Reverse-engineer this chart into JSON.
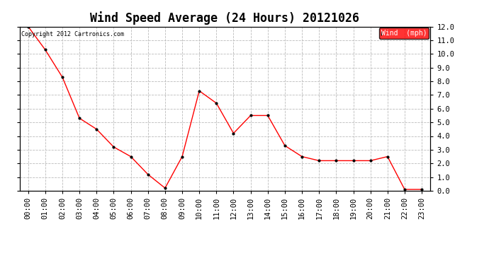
{
  "title": "Wind Speed Average (24 Hours) 20121026",
  "copyright_text": "Copyright 2012 Cartronics.com",
  "legend_label": "Wind  (mph)",
  "x_labels": [
    "00:00",
    "01:00",
    "02:00",
    "03:00",
    "04:00",
    "05:00",
    "06:00",
    "07:00",
    "08:00",
    "09:00",
    "10:00",
    "11:00",
    "12:00",
    "13:00",
    "14:00",
    "15:00",
    "16:00",
    "17:00",
    "18:00",
    "19:00",
    "20:00",
    "21:00",
    "22:00",
    "23:00"
  ],
  "y_values": [
    12.0,
    10.3,
    8.3,
    5.3,
    4.5,
    3.2,
    2.5,
    1.2,
    0.2,
    2.5,
    7.3,
    6.4,
    4.2,
    5.5,
    5.5,
    3.3,
    2.5,
    2.2,
    2.2,
    2.2,
    2.2,
    2.5,
    0.1,
    0.1
  ],
  "ylim": [
    0.0,
    12.0
  ],
  "yticks": [
    0.0,
    1.0,
    2.0,
    3.0,
    4.0,
    5.0,
    6.0,
    7.0,
    8.0,
    9.0,
    10.0,
    11.0,
    12.0
  ],
  "line_color": "red",
  "marker_color": "black",
  "bg_color": "white",
  "grid_color": "#bbbbbb",
  "title_fontsize": 12,
  "tick_fontsize": 7.5,
  "legend_bg": "red",
  "legend_text_color": "white"
}
